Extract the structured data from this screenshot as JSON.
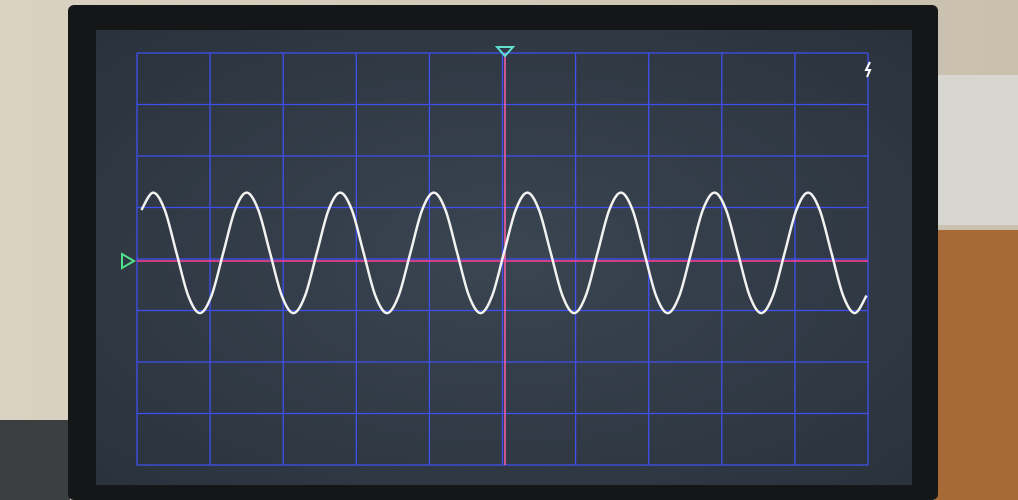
{
  "chart_data": {
    "type": "line",
    "xlim": [
      -5,
      5
    ],
    "ylim": [
      -4,
      4
    ],
    "xticks": [
      -5,
      -4,
      -3,
      -2,
      -1,
      0,
      1,
      2,
      3,
      4,
      5
    ],
    "yticks": [
      -4,
      -3,
      -2,
      -1,
      0,
      1,
      2,
      3,
      4
    ],
    "grid": true,
    "grid_color": "#3f4ff0",
    "x": [
      -4.94,
      -4.78,
      -4.62,
      -4.46,
      -4.3,
      -4.14,
      -3.98,
      -3.82,
      -3.66,
      -3.5,
      -3.34,
      -3.18,
      -3.02,
      -2.86,
      -2.7,
      -2.54,
      -2.38,
      -2.22,
      -2.06,
      -1.9,
      -1.74,
      -1.58,
      -1.42,
      -1.26,
      -1.1,
      -0.94,
      -0.78,
      -0.62,
      -0.46,
      -0.3,
      -0.14,
      0.02,
      0.18,
      0.34,
      0.5,
      0.66,
      0.82,
      0.98,
      1.14,
      1.3,
      1.46,
      1.62,
      1.78,
      1.94,
      2.1,
      2.26,
      2.42,
      2.58,
      2.74,
      2.9,
      3.06,
      3.22,
      3.38,
      3.54,
      3.7,
      3.86,
      4.02,
      4.18,
      4.34,
      4.5,
      4.66,
      4.82,
      4.98
    ],
    "series": [
      {
        "color": "#f2f2f0",
        "values": [
          0.95,
          1.29,
          0.95,
          0.12,
          -0.71,
          -1.05,
          -0.71,
          0.12,
          0.95,
          1.29,
          0.95,
          0.12,
          -0.71,
          -1.05,
          -0.71,
          0.12,
          0.95,
          1.29,
          0.95,
          0.12,
          -0.71,
          -1.05,
          -0.71,
          0.12,
          0.95,
          1.29,
          0.95,
          0.12,
          -0.71,
          -1.05,
          -0.71,
          0.12,
          0.95,
          1.29,
          0.95,
          0.12,
          -0.71,
          -1.05,
          -0.71,
          0.12,
          0.95,
          1.29,
          0.95,
          0.12,
          -0.71,
          -1.05,
          -0.71,
          0.12,
          0.95,
          1.29,
          0.95,
          0.12,
          -0.71,
          -1.05,
          -0.71,
          0.12,
          0.95,
          1.29,
          0.95,
          0.12,
          -0.71,
          -1.05,
          -0.71
        ]
      }
    ]
  }
}
